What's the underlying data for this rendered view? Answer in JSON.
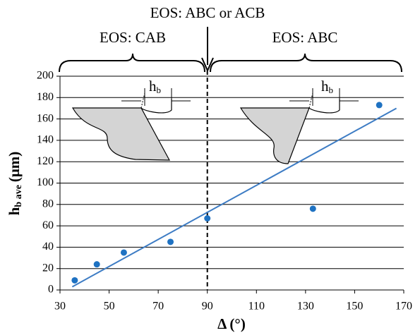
{
  "chart_data": {
    "type": "scatter",
    "x_label": "Δ (°)",
    "y_label": {
      "main": "h",
      "sub": "b ave",
      "unit": "(μm)"
    },
    "x": [
      36,
      45,
      56,
      75,
      90,
      133,
      160
    ],
    "values": [
      9,
      24,
      35,
      45,
      67,
      76,
      173
    ],
    "color": "#1f72c2",
    "trendline": {
      "x": [
        35,
        167
      ],
      "y": [
        3,
        170
      ],
      "color": "#3d7cc4"
    },
    "xlim": [
      30,
      170
    ],
    "xticks": [
      30,
      50,
      70,
      90,
      110,
      130,
      150,
      170
    ],
    "ylim": [
      0,
      200
    ],
    "yticks": [
      0,
      20,
      40,
      60,
      80,
      100,
      120,
      140,
      160,
      180,
      200
    ],
    "grid": true,
    "divider_x": 90,
    "annotations": {
      "top": "EOS: ABC or ACB",
      "left": "EOS: CAB",
      "right": "EOS: ABC"
    },
    "insets": [
      {
        "main": "h",
        "sub": "b"
      },
      {
        "main": "h",
        "sub": "b"
      }
    ]
  }
}
